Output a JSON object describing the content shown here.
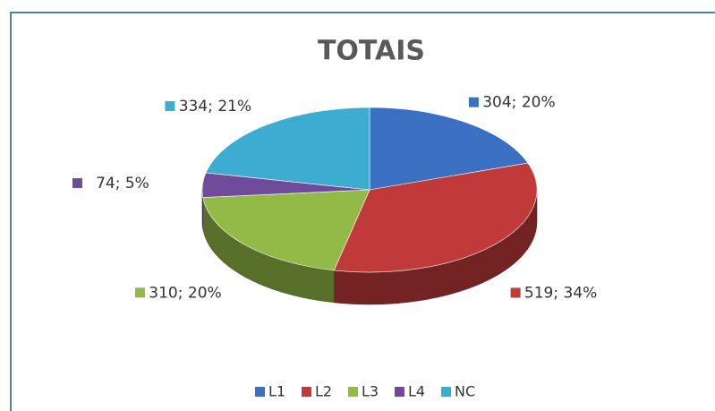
{
  "chart_data": {
    "type": "pie",
    "title": "TOTAIS",
    "categories": [
      "L1",
      "L2",
      "L3",
      "L4",
      "NC"
    ],
    "values": [
      304,
      519,
      310,
      74,
      334
    ],
    "value_labels": [
      "304; 20%",
      "519; 34%",
      "310; 20%",
      "74; 5%",
      "334; 21%"
    ],
    "colors": [
      "#3b6fc2",
      "#c13a3a",
      "#93b946",
      "#6f4c9b",
      "#3cadd0"
    ],
    "legend": "bottom"
  }
}
